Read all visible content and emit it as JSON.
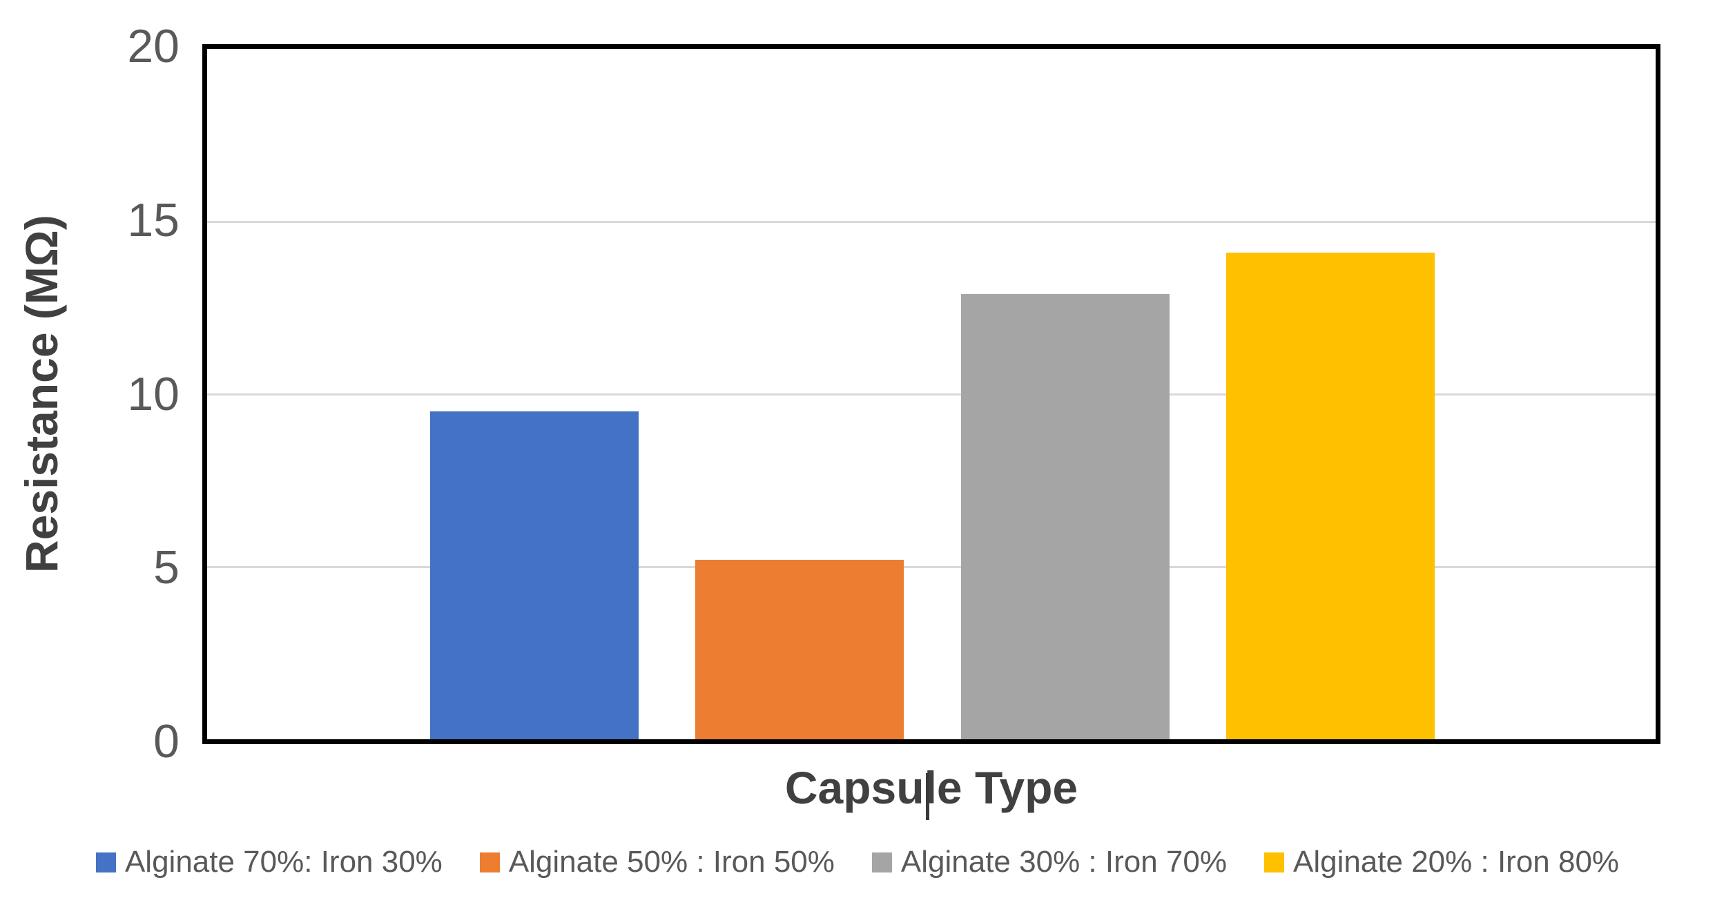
{
  "chart_data": {
    "type": "bar",
    "title": "",
    "xlabel": "Capsule Type",
    "ylabel": "Resistance (MΩ)",
    "ylim": [
      0,
      20
    ],
    "y_ticks": [
      20,
      15,
      10,
      5,
      0
    ],
    "grid": "horizontal",
    "legend_position": "bottom",
    "categories": [
      "Alginate 70%: Iron 30%",
      "Alginate 50% : Iron 50%",
      "Alginate 30% : Iron 70%",
      "Alginate 20% : Iron 80%"
    ],
    "values": [
      9.5,
      5.2,
      12.9,
      14.1
    ],
    "bar_colors": [
      "#4472C4",
      "#ED7D31",
      "#A5A5A5",
      "#FFC000"
    ],
    "legend": [
      {
        "label": "Alginate 70%: Iron 30%",
        "color": "#4472C4"
      },
      {
        "label": "Alginate 50% : Iron 50%",
        "color": "#ED7D31"
      },
      {
        "label": "Alginate 30% : Iron 70%",
        "color": "#A5A5A5"
      },
      {
        "label": "Alginate 20% : Iron 80%",
        "color": "#FFC000"
      }
    ]
  },
  "style": {
    "background": "#FFFFFF",
    "plot_border_color": "#000000",
    "gridline_color": "#D9D9D9",
    "tick_label_color": "#595959",
    "axis_title_color": "#404040",
    "legend_text_color": "#595959"
  },
  "editing": {
    "text_cursor_visible_on": "xlabel"
  }
}
